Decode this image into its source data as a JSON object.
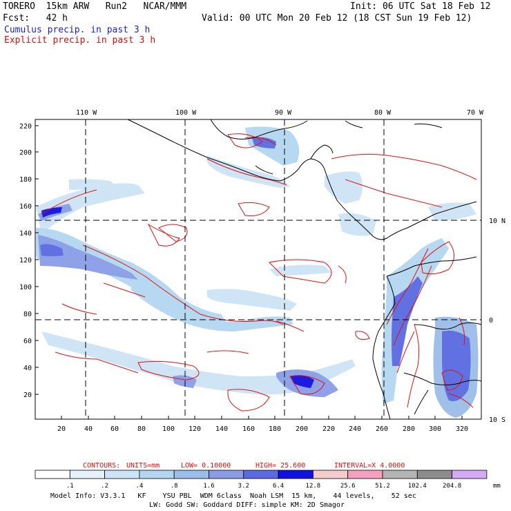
{
  "header": {
    "title": "TORERO  15km ARW   Run2   NCAR/MMM",
    "init": "Init: 06 UTC Sat 18 Feb 12",
    "fcst": "Fcst:   42 h",
    "valid": "Valid: 00 UTC Mon 20 Feb 12 (18 CST Sun 19 Feb 12)",
    "legend_cumulus": "Cumulus precip. in past 3 h",
    "legend_explicit": "Explicit precip. in past 3 h"
  },
  "top_lon_labels": [
    "110 W",
    "100 W",
    "90 W",
    "80 W",
    "70 W"
  ],
  "left_y_labels": [
    "220",
    "200",
    "180",
    "160",
    "140",
    "120",
    "100",
    "80",
    "60",
    "40",
    "20"
  ],
  "bottom_x_labels": [
    "20",
    "40",
    "60",
    "80",
    "100",
    "120",
    "140",
    "160",
    "180",
    "200",
    "220",
    "240",
    "260",
    "280",
    "300",
    "320"
  ],
  "right_lat_labels": [
    "10 N",
    "0",
    "10 S"
  ],
  "contour_info": {
    "contours": "CONTOURS:",
    "units": "UNITS=mm",
    "low": "LOW= 0.10000",
    "high": "HIGH=  25.600",
    "interval": "INTERVAL=X  4.0000"
  },
  "colorbar": {
    "labels": [
      ".1",
      ".2",
      ".4",
      ".8",
      "1.6",
      "3.2",
      "6.4",
      "12.8",
      "25.6",
      "51.2",
      "102.4",
      "204.8"
    ],
    "unit": "mm",
    "colors": [
      "#ffffff",
      "#e6f2fb",
      "#cde4f6",
      "#b3d6f0",
      "#9bbde8",
      "#8a9ce6",
      "#5a6ae0",
      "#1010e0",
      "#f4cccc",
      "#f6a0c0",
      "#b4b4b4",
      "#8c8c8c",
      "#d4aaf4"
    ]
  },
  "footer": {
    "line1": "Model Info: V3.3.1   KF    YSU PBL  WDM 6class  Noah LSM  15 km,    44 levels,    52 sec",
    "line2": "LW: Godd SW: Goddard DIFF: simple KM: 2D Smagor"
  }
}
